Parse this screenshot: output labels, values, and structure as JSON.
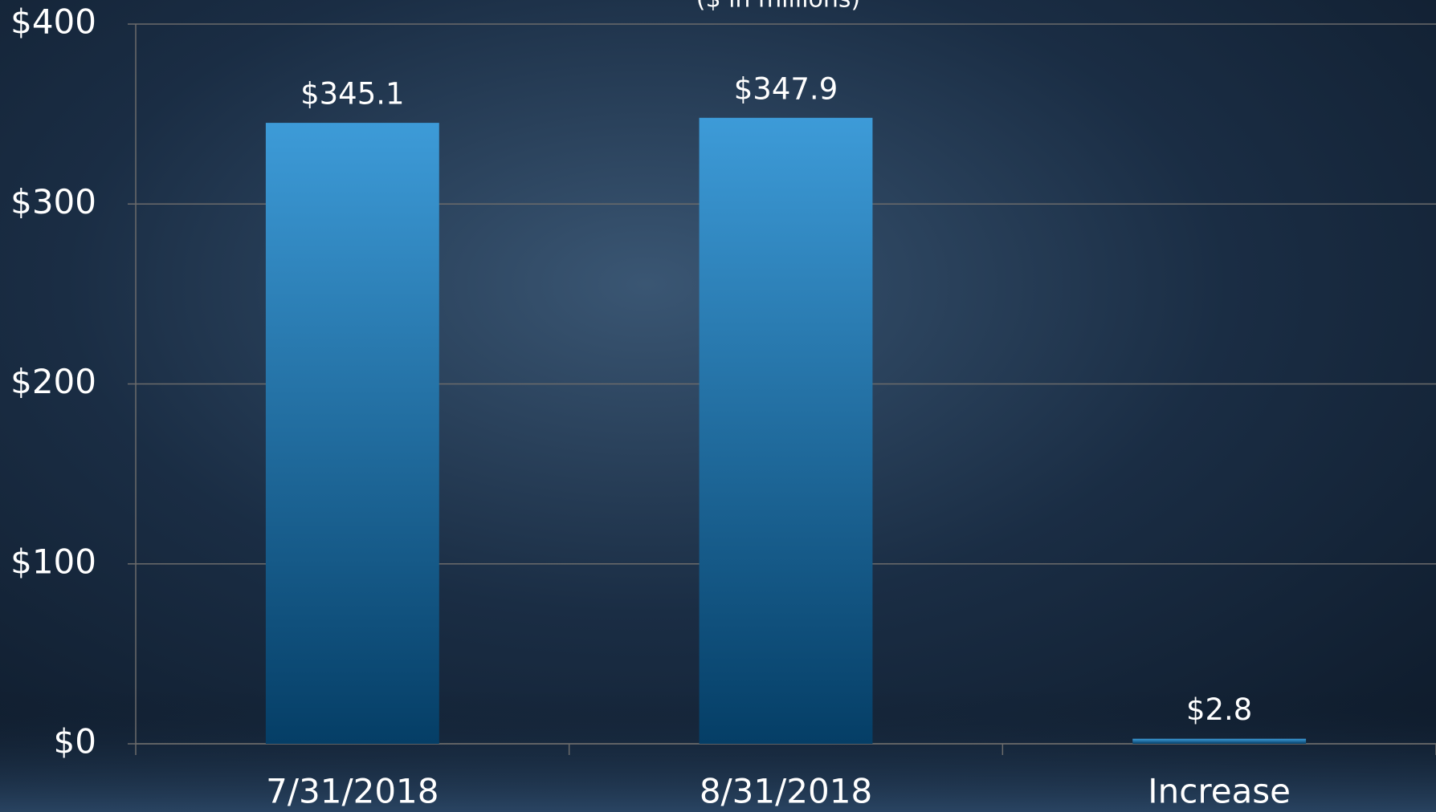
{
  "chart_data": {
    "type": "bar",
    "subtitle": "($ in millions)",
    "categories": [
      "7/31/2018",
      "8/31/2018",
      "Increase"
    ],
    "values": [
      345.1,
      347.9,
      2.8
    ],
    "value_labels": [
      "$345.1",
      "$347.9",
      "$2.8"
    ],
    "color": "#3d9bd8",
    "ylim": [
      0,
      400
    ],
    "yticks": [
      {
        "value": 0,
        "label": "$0"
      },
      {
        "value": 100,
        "label": "$100"
      },
      {
        "value": 200,
        "label": "$200"
      },
      {
        "value": 300,
        "label": "$300"
      },
      {
        "value": 400,
        "label": "$400"
      }
    ],
    "grid": true
  }
}
